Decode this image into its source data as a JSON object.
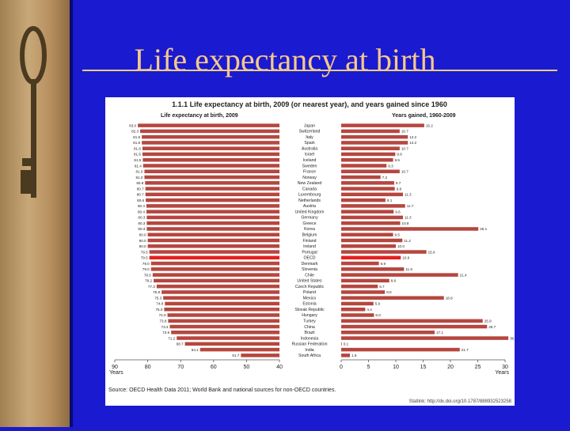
{
  "slide": {
    "title": "Life expectancy at birth"
  },
  "colors": {
    "bar": "#b5473f",
    "highlight": "#e62020",
    "slide_bg": "#1a1ad0",
    "title": "#f5c88a"
  },
  "icons": {
    "decoration": "key-icon"
  },
  "chart_data": {
    "type": "bar",
    "title": "1.1.1 Life expectancy at birth, 2009 (or nearest year), and years gained since 1960",
    "source": "Source: OECD Health Data 2011; World Bank and national sources for non-OECD countries.",
    "statlink": "Statlink: http://dx.doi.org/10.1787/888932523258",
    "categories": [
      "Japan",
      "Switzerland",
      "Italy",
      "Spain",
      "Australia",
      "Israel",
      "Iceland",
      "Sweden",
      "France",
      "Norway",
      "New Zealand",
      "Canada",
      "Luxembourg",
      "Netherlands",
      "Austria",
      "United Kingdom",
      "Germany",
      "Greece",
      "Korea",
      "Belgium",
      "Finland",
      "Ireland",
      "Portugal",
      "OECD",
      "Denmark",
      "Slovenia",
      "Chile",
      "United States",
      "Czech Republic",
      "Poland",
      "Mexico",
      "Estonia",
      "Slovak Republic",
      "Hungary",
      "Turkey",
      "China",
      "Brazil",
      "Indonesia",
      "Russian Federation",
      "India",
      "South Africa"
    ],
    "highlight": "OECD",
    "left_panel": {
      "title": "Life expectancy at birth, 2009",
      "values": [
        83.0,
        82.3,
        81.8,
        81.8,
        81.6,
        81.6,
        81.5,
        81.4,
        81.0,
        81.0,
        80.8,
        80.7,
        80.7,
        80.6,
        80.4,
        80.4,
        80.3,
        80.3,
        80.3,
        80.0,
        80.0,
        80.0,
        79.5,
        79.5,
        79.0,
        79.0,
        78.5,
        78.2,
        77.3,
        75.8,
        75.3,
        74.8,
        75.0,
        74.0,
        73.8,
        73.3,
        72.9,
        71.2,
        68.7,
        64.1,
        51.7
      ],
      "labels": [
        "83.0",
        "82.3",
        "81.8",
        "81.8",
        "81.6",
        "81.6",
        "81.5",
        "81.4",
        "81.0",
        "81.0",
        "80.8",
        "80.7",
        "80.7",
        "80.6",
        "80.4",
        "80.4",
        "80.3",
        "80.3",
        "80.3",
        "80.0",
        "80.0",
        "80.0",
        "79.5",
        "79.5",
        "79.0",
        "79.0",
        "78.5",
        "78.2",
        "77.3",
        "75.8",
        "75.3",
        "74.8",
        "75.0",
        "74.0",
        "73.8",
        "73.3",
        "72.9",
        "71.2",
        "68.7",
        "64.1",
        "51.7"
      ],
      "xlim": [
        90,
        40
      ],
      "ticks": [
        "90",
        "80",
        "70",
        "60",
        "50",
        "40"
      ],
      "xlabel": "Years"
    },
    "right_panel": {
      "title": "Years gained, 1960-2009",
      "values": [
        15.2,
        10.7,
        12.2,
        12.2,
        10.7,
        9.9,
        9.5,
        8.3,
        10.7,
        7.2,
        9.7,
        9.8,
        11.3,
        8.1,
        11.7,
        9.6,
        11.3,
        10.8,
        25.1,
        9.5,
        11.2,
        10.0,
        15.6,
        10.9,
        6.9,
        11.5,
        21.4,
        8.8,
        6.7,
        8.0,
        18.8,
        5.9,
        4.4,
        6.0,
        25.9,
        26.7,
        17.1,
        30.6,
        0.1,
        21.7,
        1.6
      ],
      "labels": [
        "15.2",
        "10.7",
        "12.2",
        "12.2",
        "10.7",
        "9.9",
        "9.5",
        "8.3",
        "10.7",
        "7.2",
        "9.7",
        "9.8",
        "11.3",
        "8.1",
        "11.7",
        "9.6",
        "11.3",
        "10.8",
        "25.1",
        "9.5",
        "11.2",
        "10.0",
        "15.6",
        "10.9",
        "6.9",
        "11.5",
        "21.4",
        "8.8",
        "6.7",
        "8.0",
        "18.8",
        "5.9",
        "4.4",
        "6.0",
        "25.9",
        "26.7",
        "17.1",
        "30.6",
        "0.1",
        "21.7",
        "1.6"
      ],
      "xlim": [
        0,
        30
      ],
      "ticks": [
        "0",
        "5",
        "10",
        "15",
        "20",
        "25",
        "30"
      ],
      "xlabel": "Years"
    },
    "legend": "none",
    "grid": false
  }
}
